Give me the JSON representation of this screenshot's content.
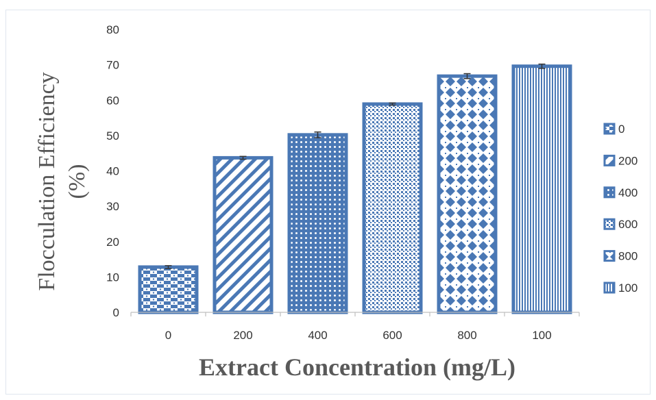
{
  "chart_data": {
    "type": "bar",
    "categories": [
      "0",
      "200",
      "400",
      "600",
      "800",
      "100"
    ],
    "values": [
      12.8,
      43.7,
      50.2,
      58.9,
      66.8,
      69.6
    ],
    "errors": [
      0.4,
      0.4,
      0.8,
      0.3,
      0.7,
      0.6
    ],
    "ylim": [
      0,
      80
    ],
    "yticks": [
      "0",
      "10",
      "20",
      "30",
      "40",
      "50",
      "60",
      "70",
      "80"
    ],
    "ylabel_line1": "Flocculation Efficiency",
    "ylabel_line2": "(%)",
    "xlabel": "Extract Concentration (mg/L)",
    "legend": [
      "0",
      "200",
      "400",
      "600",
      "800",
      "100"
    ],
    "legend_position": "right",
    "grid": false,
    "colors": {
      "bar": "#4a78b5",
      "axis": "#bfbfbf",
      "text": "#333333"
    },
    "patterns": [
      "checker",
      "diagonal",
      "dots",
      "fine-dots",
      "diamond",
      "vertical"
    ]
  }
}
